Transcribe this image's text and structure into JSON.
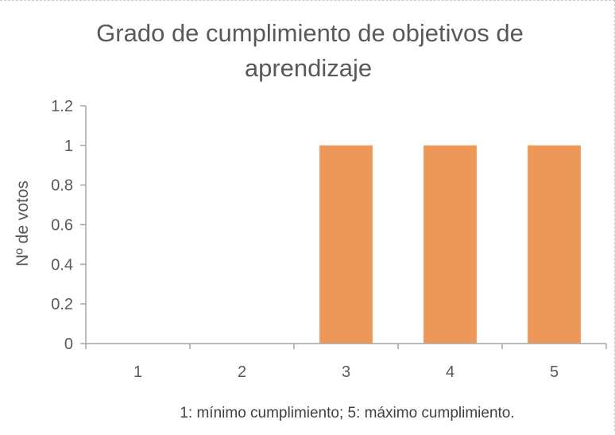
{
  "chart_data": {
    "type": "bar",
    "title_lines": [
      "Grado de cumplimiento de objetivos de",
      "aprendizaje"
    ],
    "xlabel": "",
    "ylabel": "Nº de votos",
    "categories": [
      "1",
      "2",
      "3",
      "4",
      "5"
    ],
    "values": [
      0,
      0,
      1,
      1,
      1
    ],
    "ylim": [
      0,
      1.2
    ],
    "yticks": [
      "0",
      "0.2",
      "0.4",
      "0.6",
      "0.8",
      "1",
      "1.2"
    ],
    "grid": false,
    "legend": "none",
    "bar_color": "#ED9758",
    "axis_color": "#A6A6A6",
    "note": "1: mínimo cumplimiento; 5: máximo cumplimiento."
  }
}
